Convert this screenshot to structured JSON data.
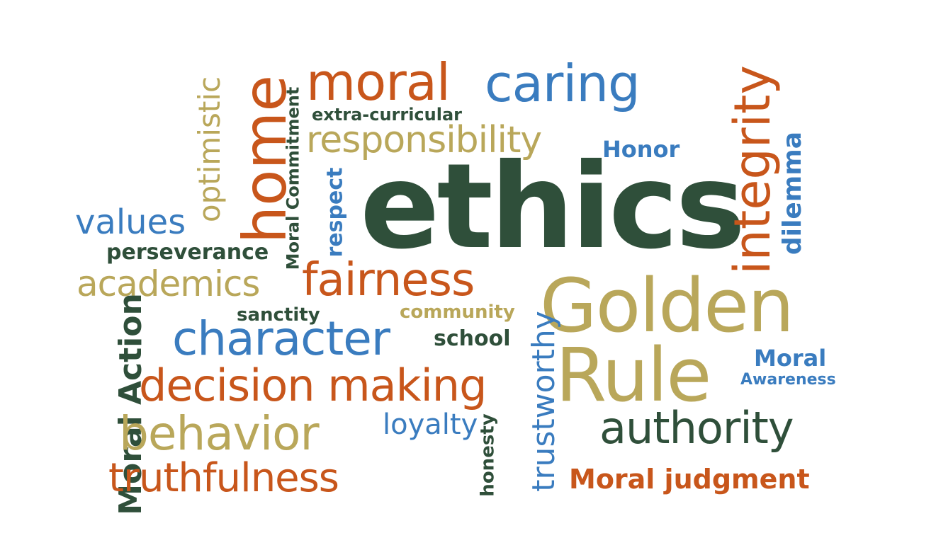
{
  "word_cloud": {
    "words": {
      "ethics": "ethics",
      "golden": "Golden",
      "rule": "Rule",
      "moral": "moral",
      "caring": "caring",
      "home": "home",
      "optimistic": "optimistic",
      "moral_commitment": "Moral Commitment",
      "extra_curricular": "extra-curricular",
      "responsibility": "responsibility",
      "honor": "Honor",
      "integrity": "integrity",
      "dilemma": "dilemma",
      "values": "values",
      "respect": "respect",
      "perseverance": "perseverance",
      "academics": "academics",
      "fairness": "fairness",
      "sanctity": "sanctity",
      "community": "community",
      "character": "character",
      "school": "school",
      "moral_action": "Moral Action",
      "decision_making": "decision making",
      "trustworthy": "trustworthy",
      "moral_awareness_line1": "Moral",
      "moral_awareness_line2": "Awareness",
      "behavior": "behavior",
      "loyalty": "loyalty",
      "authority": "authority",
      "honesty": "honesty",
      "truthfulness": "truthfulness",
      "moral_judgment": "Moral judgment"
    },
    "colors": {
      "dark_green": "#2f4f3a",
      "orange": "#c8561b",
      "blue": "#3a7cbf",
      "gold": "#b9a75a"
    }
  }
}
